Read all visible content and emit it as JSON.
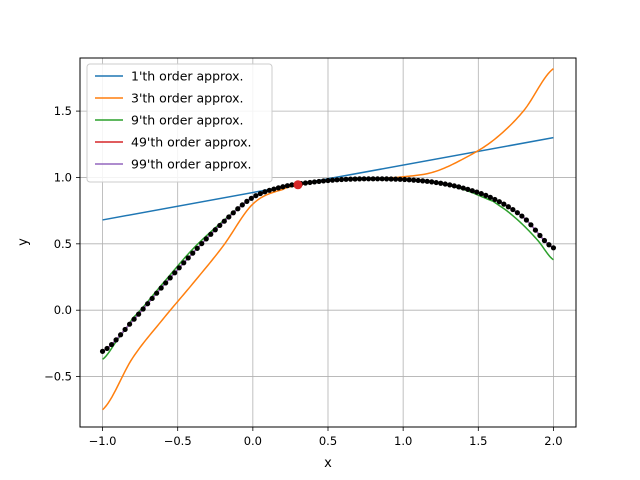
{
  "chart_data": {
    "type": "line",
    "xlabel": "x",
    "ylabel": "y",
    "xlim": [
      -1.15,
      2.15
    ],
    "ylim": [
      -0.88,
      1.9
    ],
    "grid": true,
    "legend_position": "top-left",
    "xticks": [
      -1.0,
      -0.5,
      0.0,
      0.5,
      1.0,
      1.5,
      2.0
    ],
    "xtick_labels": [
      "−1.0",
      "−0.5",
      "0.0",
      "0.5",
      "1.0",
      "1.5",
      "2.0"
    ],
    "yticks": [
      -0.5,
      0.0,
      0.5,
      1.0,
      1.5
    ],
    "ytick_labels": [
      "−0.5",
      "0.0",
      "0.5",
      "1.0",
      "1.5"
    ],
    "series": [
      {
        "name": "1'th order approx.",
        "color": "#1f77b4",
        "x": [
          -1.0,
          2.0
        ],
        "y": [
          0.68,
          1.3
        ]
      },
      {
        "name": "3'th order approx.",
        "color": "#ff7f0e",
        "x": [
          -1.0,
          -0.8,
          -0.6,
          -0.4,
          -0.2,
          0.0,
          0.2,
          0.3,
          0.4,
          0.6,
          0.8,
          1.0,
          1.2,
          1.4,
          1.6,
          1.8,
          2.0
        ],
        "y": [
          -0.75,
          -0.36,
          -0.07,
          0.2,
          0.48,
          0.8,
          0.91,
          0.94,
          0.965,
          0.985,
          0.99,
          1.005,
          1.04,
          1.14,
          1.28,
          1.5,
          1.82
        ]
      },
      {
        "name": "9'th order approx.",
        "color": "#2ca02c",
        "x": [
          -1.0,
          -0.9,
          -0.8,
          -0.6,
          -0.4,
          -0.2,
          0.0,
          0.2,
          0.4,
          0.6,
          0.8,
          1.0,
          1.2,
          1.4,
          1.6,
          1.7,
          1.8,
          1.9,
          2.0
        ],
        "y": [
          -0.37,
          -0.22,
          -0.06,
          0.2,
          0.46,
          0.67,
          0.85,
          0.93,
          0.965,
          0.985,
          0.99,
          0.985,
          0.965,
          0.91,
          0.82,
          0.74,
          0.64,
          0.52,
          0.38
        ]
      },
      {
        "name": "49'th order approx.",
        "color": "#d62728",
        "x": [
          -1.0,
          -0.8,
          -0.6,
          -0.4,
          -0.2,
          0.0,
          0.2,
          0.4,
          0.6,
          0.8,
          1.0,
          1.2,
          1.4,
          1.6,
          1.8,
          2.0
        ],
        "y": [
          -0.31,
          -0.08,
          0.18,
          0.43,
          0.66,
          0.85,
          0.93,
          0.965,
          0.985,
          0.99,
          0.985,
          0.965,
          0.92,
          0.84,
          0.7,
          0.47
        ]
      },
      {
        "name": "99'th order approx.",
        "color": "#9467bd",
        "x": [
          -1.0,
          -0.8,
          -0.6,
          -0.4,
          -0.2,
          0.0,
          0.2,
          0.4,
          0.6,
          0.8,
          1.0,
          1.2,
          1.4,
          1.6,
          1.8,
          2.0
        ],
        "y": [
          -0.31,
          -0.08,
          0.18,
          0.43,
          0.66,
          0.85,
          0.93,
          0.965,
          0.985,
          0.99,
          0.985,
          0.965,
          0.92,
          0.84,
          0.7,
          0.47
        ]
      }
    ],
    "samples": {
      "color": "#000000",
      "x0": -1.0,
      "x1": 2.0,
      "count": 101,
      "curve_x": [
        -1.0,
        -0.8,
        -0.6,
        -0.4,
        -0.2,
        0.0,
        0.2,
        0.4,
        0.6,
        0.8,
        1.0,
        1.2,
        1.4,
        1.6,
        1.8,
        2.0
      ],
      "curve_y": [
        -0.31,
        -0.08,
        0.18,
        0.43,
        0.66,
        0.85,
        0.93,
        0.965,
        0.985,
        0.99,
        0.985,
        0.965,
        0.92,
        0.84,
        0.7,
        0.47
      ]
    },
    "expansion_point": {
      "x": 0.3,
      "y": 0.945,
      "color": "#d62728"
    }
  }
}
